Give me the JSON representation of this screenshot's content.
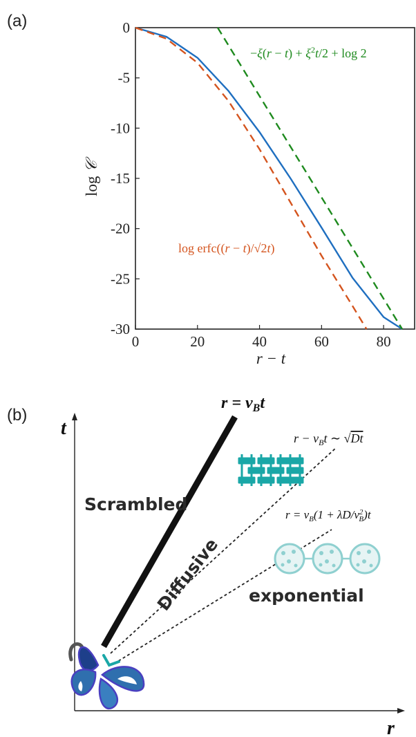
{
  "panel_a": {
    "label": "(a)",
    "chart_data": {
      "type": "line",
      "xlabel": "r − t",
      "ylabel": "log 𝒞",
      "xlim": [
        0,
        90
      ],
      "ylim": [
        -30,
        0
      ],
      "xticks": [
        0,
        20,
        40,
        60,
        80
      ],
      "xtick_labels": [
        "0",
        "20",
        "40",
        "60",
        "80"
      ],
      "yticks": [
        0,
        -5,
        -10,
        -15,
        -20,
        -25,
        -30
      ],
      "ytick_labels": [
        "0",
        "-5",
        "-10",
        "-15",
        "-20",
        "-25",
        "-30"
      ],
      "grid": false,
      "series": [
        {
          "style": "solid",
          "color": "#1f6fc0",
          "x": [
            0,
            10,
            20,
            30,
            40,
            50,
            60,
            70,
            80,
            86
          ],
          "y": [
            0,
            -0.9,
            -3.0,
            -6.3,
            -10.4,
            -15.0,
            -19.9,
            -24.9,
            -28.8,
            -30
          ]
        },
        {
          "name": "log erfc((r − t)/√2t)",
          "style": "dashed",
          "color": "#d4541e",
          "x": [
            0,
            10,
            20,
            30,
            40,
            50,
            60,
            70,
            74.5
          ],
          "y": [
            0,
            -1.1,
            -3.5,
            -7.3,
            -12.1,
            -17.4,
            -22.7,
            -27.7,
            -30
          ]
        },
        {
          "name": "−ξ(r − t) + ξ²t/2 + log 2",
          "style": "dashed",
          "color": "#1e8a1e",
          "x": [
            26.5,
            86
          ],
          "y": [
            0,
            -30
          ]
        }
      ]
    }
  },
  "panel_b": {
    "label": "(b)",
    "axis_t": "t",
    "axis_r": "r",
    "region_scrambled": "Scrambled",
    "region_diffusive": "Diffusive",
    "region_exponential": "exponential",
    "line_lightcone": "r = v_B t",
    "line_diffusive": "r − v_B t ∼ √(Dt)",
    "line_exponential": "r = v_B(1 + λD/v_B²)t",
    "colors": {
      "teal": "#1aa7a7",
      "light_teal": "#8fd0d0",
      "navy": "#1d3f8a",
      "butterfly_blue": "#2f6fae",
      "outline": "#4a3fc0"
    }
  }
}
